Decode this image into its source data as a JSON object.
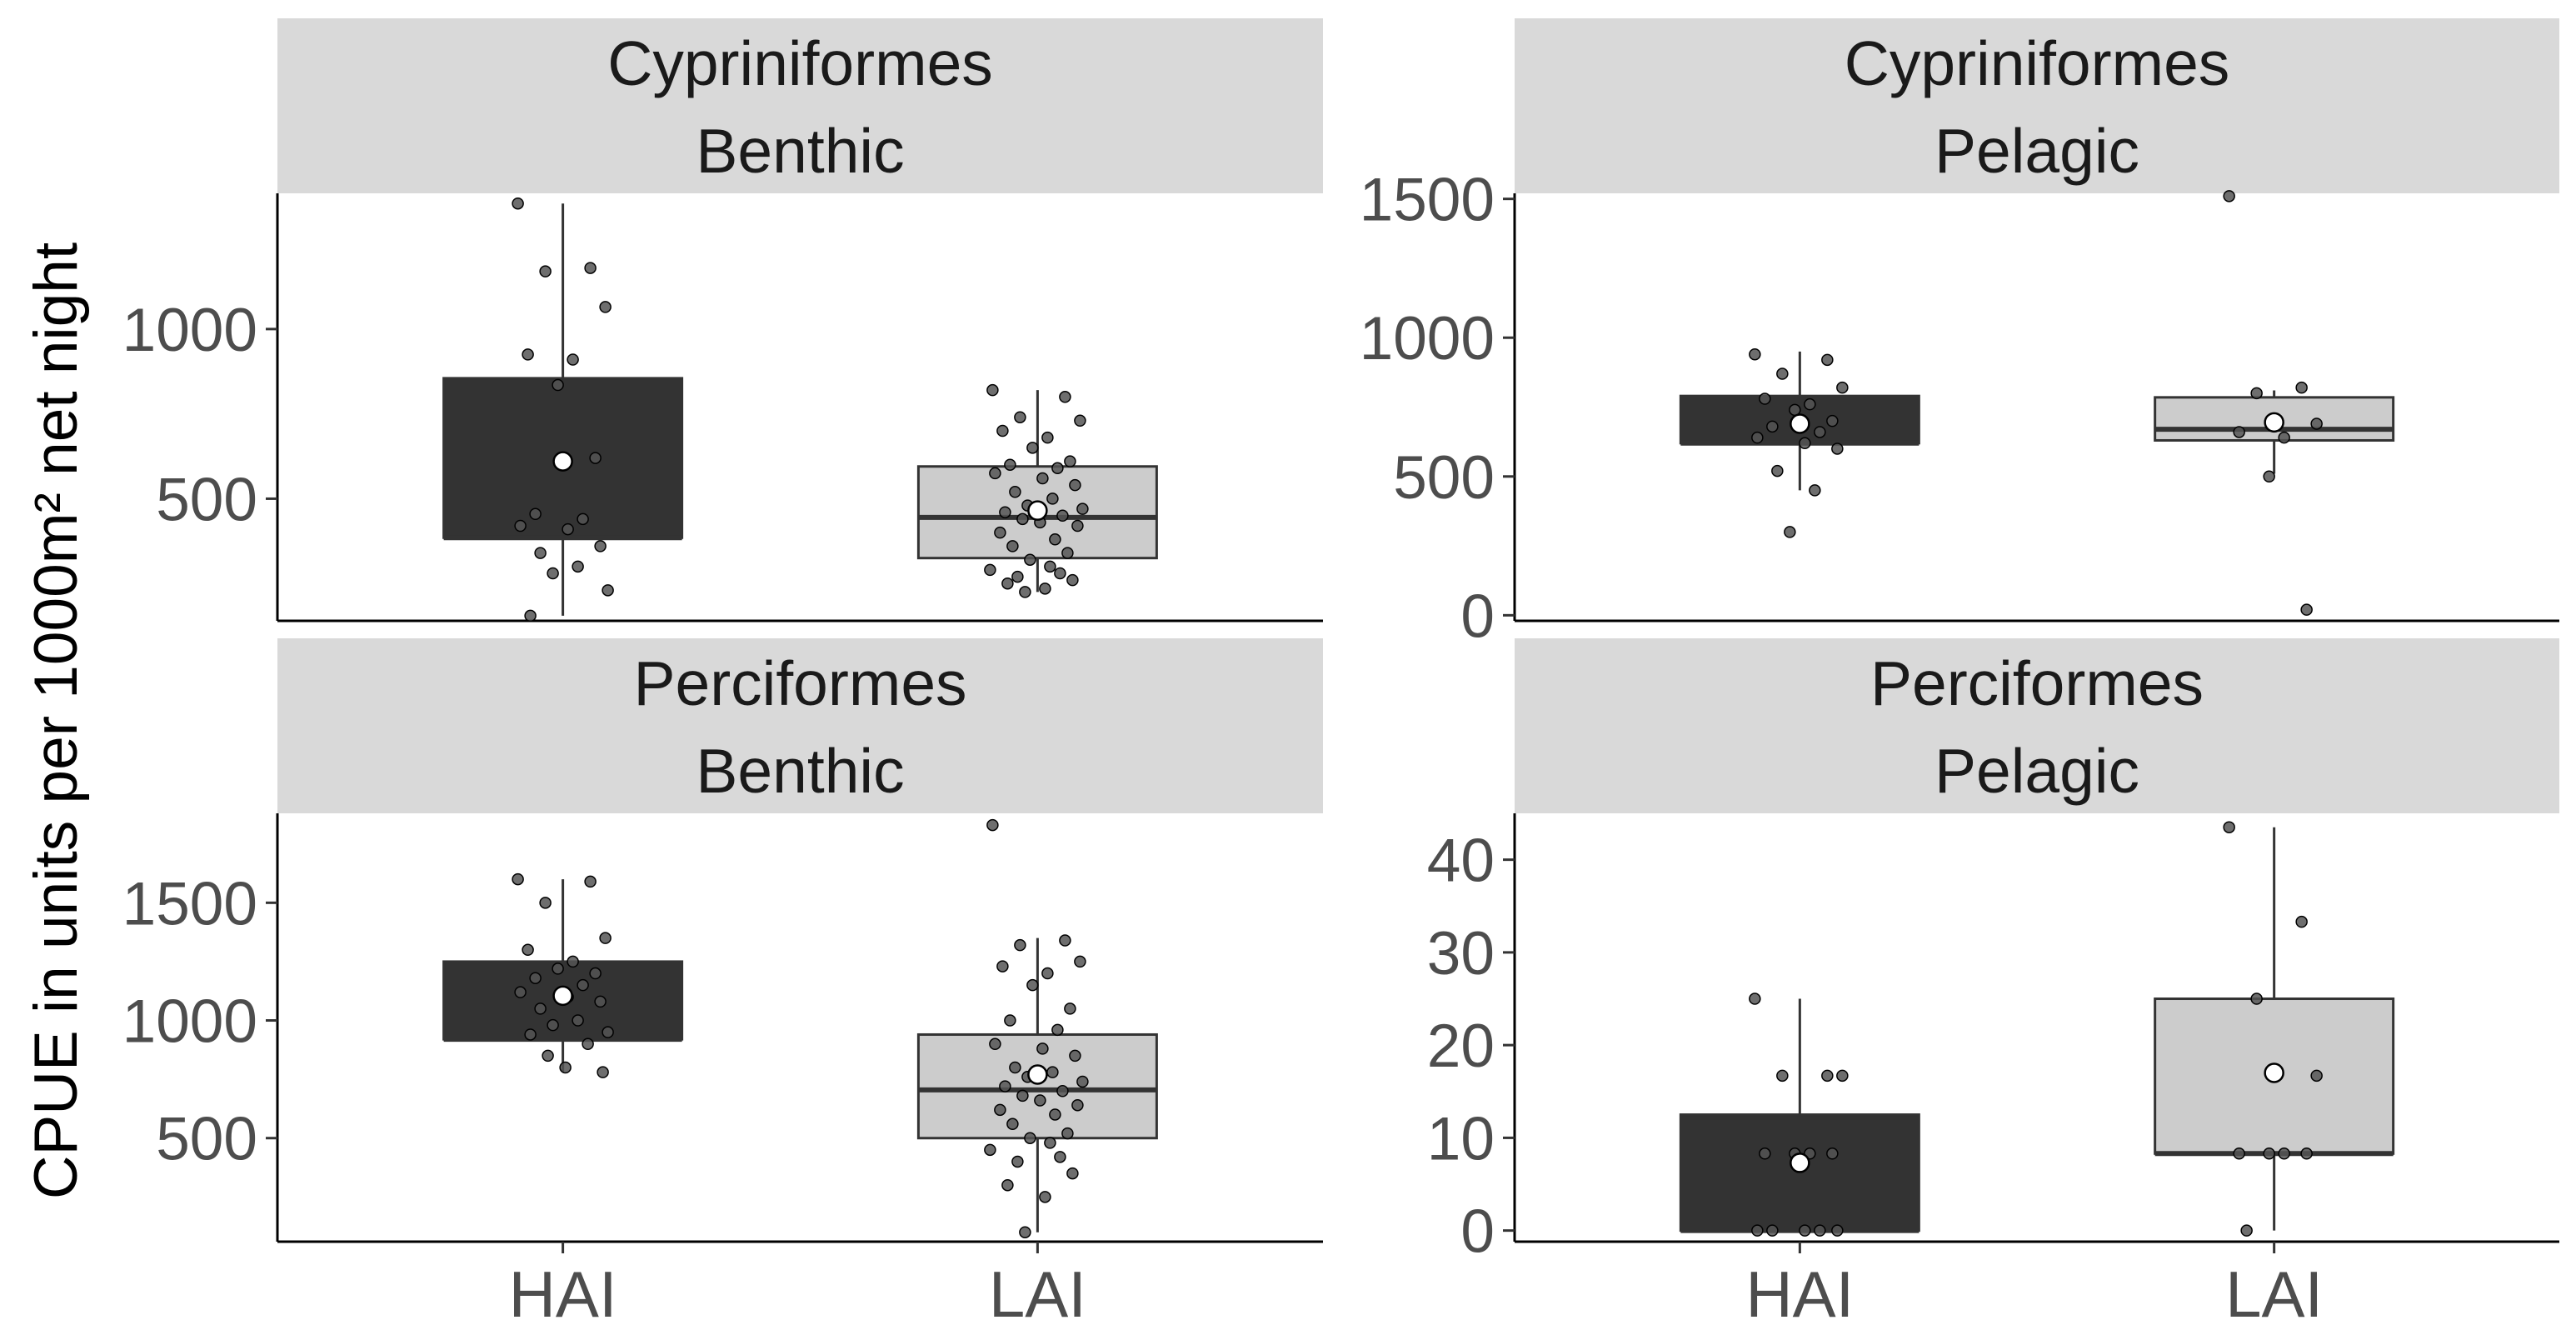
{
  "chart_data": {
    "type": "boxplot",
    "ylabel": "CPUE in units per 1000m² net night",
    "categories": [
      "HAI",
      "LAI"
    ],
    "fill_colors": {
      "HAI": "#333333",
      "LAI": "#cccccc"
    },
    "strip_fill": "#d9d9d9",
    "panels": [
      {
        "strip": [
          "Cypriniformes",
          "Benthic"
        ],
        "ylim": [
          140,
          1400
        ],
        "yticks": [
          500,
          1000
        ],
        "groups": {
          "HAI": {
            "min": 155,
            "q1": 385,
            "median": 385,
            "q3": 855,
            "max": 1370,
            "mean": 610,
            "points": [
              1370,
              1180,
              1170,
              1065,
              925,
              910,
              835,
              620,
              455,
              440,
              420,
              410,
              360,
              340,
              300,
              280,
              230,
              155
            ]
          },
          "LAI": {
            "min": 225,
            "q1": 325,
            "median": 445,
            "q3": 595,
            "max": 820,
            "mean": 465,
            "points": [
              820,
              800,
              740,
              730,
              700,
              680,
              650,
              610,
              600,
              590,
              575,
              560,
              540,
              520,
              500,
              480,
              470,
              460,
              450,
              440,
              430,
              420,
              400,
              380,
              360,
              340,
              320,
              300,
              290,
              280,
              270,
              260,
              250,
              235,
              225
            ]
          }
        }
      },
      {
        "strip": [
          "Cypriniformes",
          "Pelagic"
        ],
        "ylim": [
          -20,
          1520
        ],
        "yticks": [
          0,
          500,
          1000,
          1500
        ],
        "groups": {
          "HAI": {
            "min": 450,
            "q1": 620,
            "median": 620,
            "q3": 790,
            "max": 950,
            "mean": 690,
            "points": [
              940,
              920,
              870,
              820,
              780,
              760,
              740,
              700,
              680,
              660,
              640,
              620,
              600,
              520,
              450,
              300
            ]
          },
          "LAI": {
            "min": 510,
            "q1": 630,
            "median": 670,
            "q3": 785,
            "max": 810,
            "mean": 695,
            "points": [
              1510,
              820,
              800,
              690,
              660,
              640,
              500,
              20
            ]
          }
        }
      },
      {
        "strip": [
          "Perciformes",
          "Benthic"
        ],
        "ylim": [
          60,
          1880
        ],
        "yticks": [
          500,
          1000,
          1500
        ],
        "groups": {
          "HAI": {
            "min": 780,
            "q1": 920,
            "median": 920,
            "q3": 1250,
            "max": 1600,
            "mean": 1105,
            "points": [
              1600,
              1590,
              1500,
              1350,
              1300,
              1250,
              1220,
              1200,
              1180,
              1150,
              1120,
              1100,
              1080,
              1050,
              1000,
              980,
              950,
              940,
              900,
              850,
              800,
              780
            ]
          },
          "LAI": {
            "min": 100,
            "q1": 500,
            "median": 705,
            "q3": 940,
            "max": 1350,
            "mean": 770,
            "points": [
              1830,
              1340,
              1320,
              1250,
              1230,
              1200,
              1150,
              1050,
              1000,
              960,
              900,
              880,
              850,
              800,
              780,
              760,
              740,
              720,
              700,
              680,
              660,
              640,
              620,
              600,
              560,
              520,
              500,
              480,
              450,
              420,
              400,
              350,
              300,
              250,
              100
            ]
          }
        }
      },
      {
        "strip": [
          "Perciformes",
          "Pelagic"
        ],
        "ylim": [
          -1.2,
          45
        ],
        "yticks": [
          0,
          10,
          20,
          30,
          40
        ],
        "groups": {
          "HAI": {
            "min": 0,
            "q1": 0,
            "median": 0,
            "q3": 12.5,
            "max": 25,
            "mean": 7.3,
            "points": [
              25,
              16.7,
              16.7,
              16.7,
              8.3,
              8.3,
              8.3,
              8.3,
              0,
              0,
              0,
              0,
              0
            ]
          },
          "LAI": {
            "min": 0,
            "q1": 8.3,
            "median": 8.3,
            "q3": 25,
            "max": 43.5,
            "mean": 17,
            "points": [
              43.5,
              33.3,
              25,
              16.7,
              8.3,
              8.3,
              8.3,
              8.3,
              0
            ]
          }
        }
      }
    ]
  }
}
